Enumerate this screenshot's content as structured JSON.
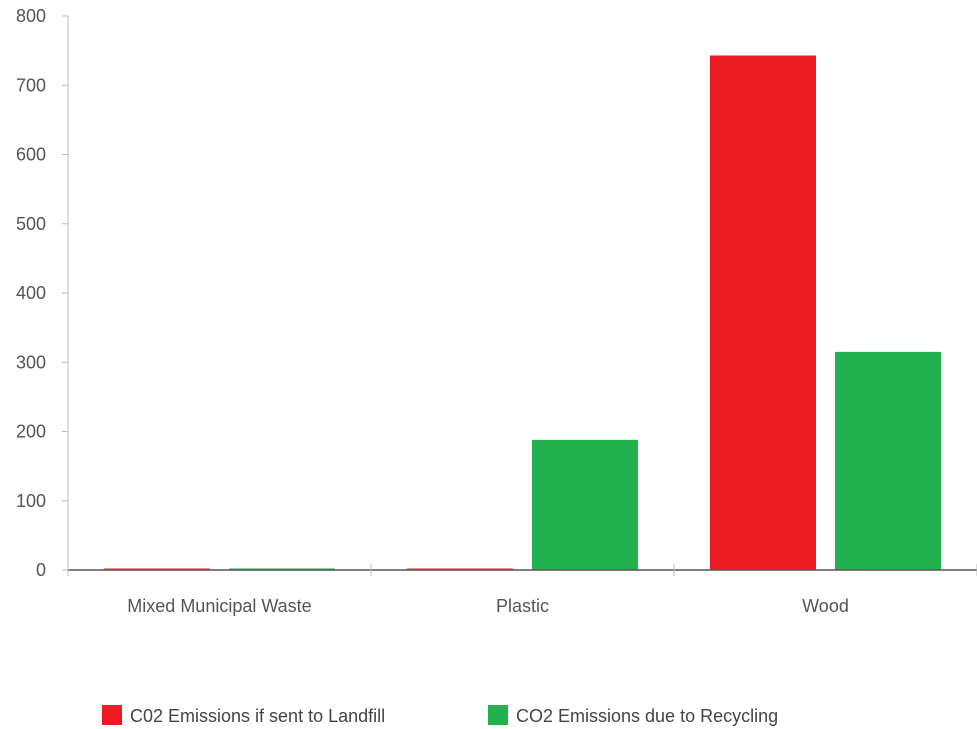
{
  "chart_data": {
    "type": "bar",
    "title": "",
    "xlabel": "",
    "ylabel": "",
    "categories": [
      "Mixed Municipal Waste",
      "Plastic",
      "Wood"
    ],
    "series": [
      {
        "name": "C02 Emissions if sent to Landfill",
        "color": "#ED1C24",
        "values": [
          2,
          2,
          743
        ]
      },
      {
        "name": "CO2 Emissions due to Recycling",
        "color": "#22B14C",
        "values": [
          2,
          188,
          315
        ]
      }
    ],
    "ylim": [
      0,
      800
    ],
    "yticks": [
      0,
      100,
      200,
      300,
      400,
      500,
      600,
      700,
      800
    ],
    "grid": false,
    "legend_position": "bottom-center"
  }
}
